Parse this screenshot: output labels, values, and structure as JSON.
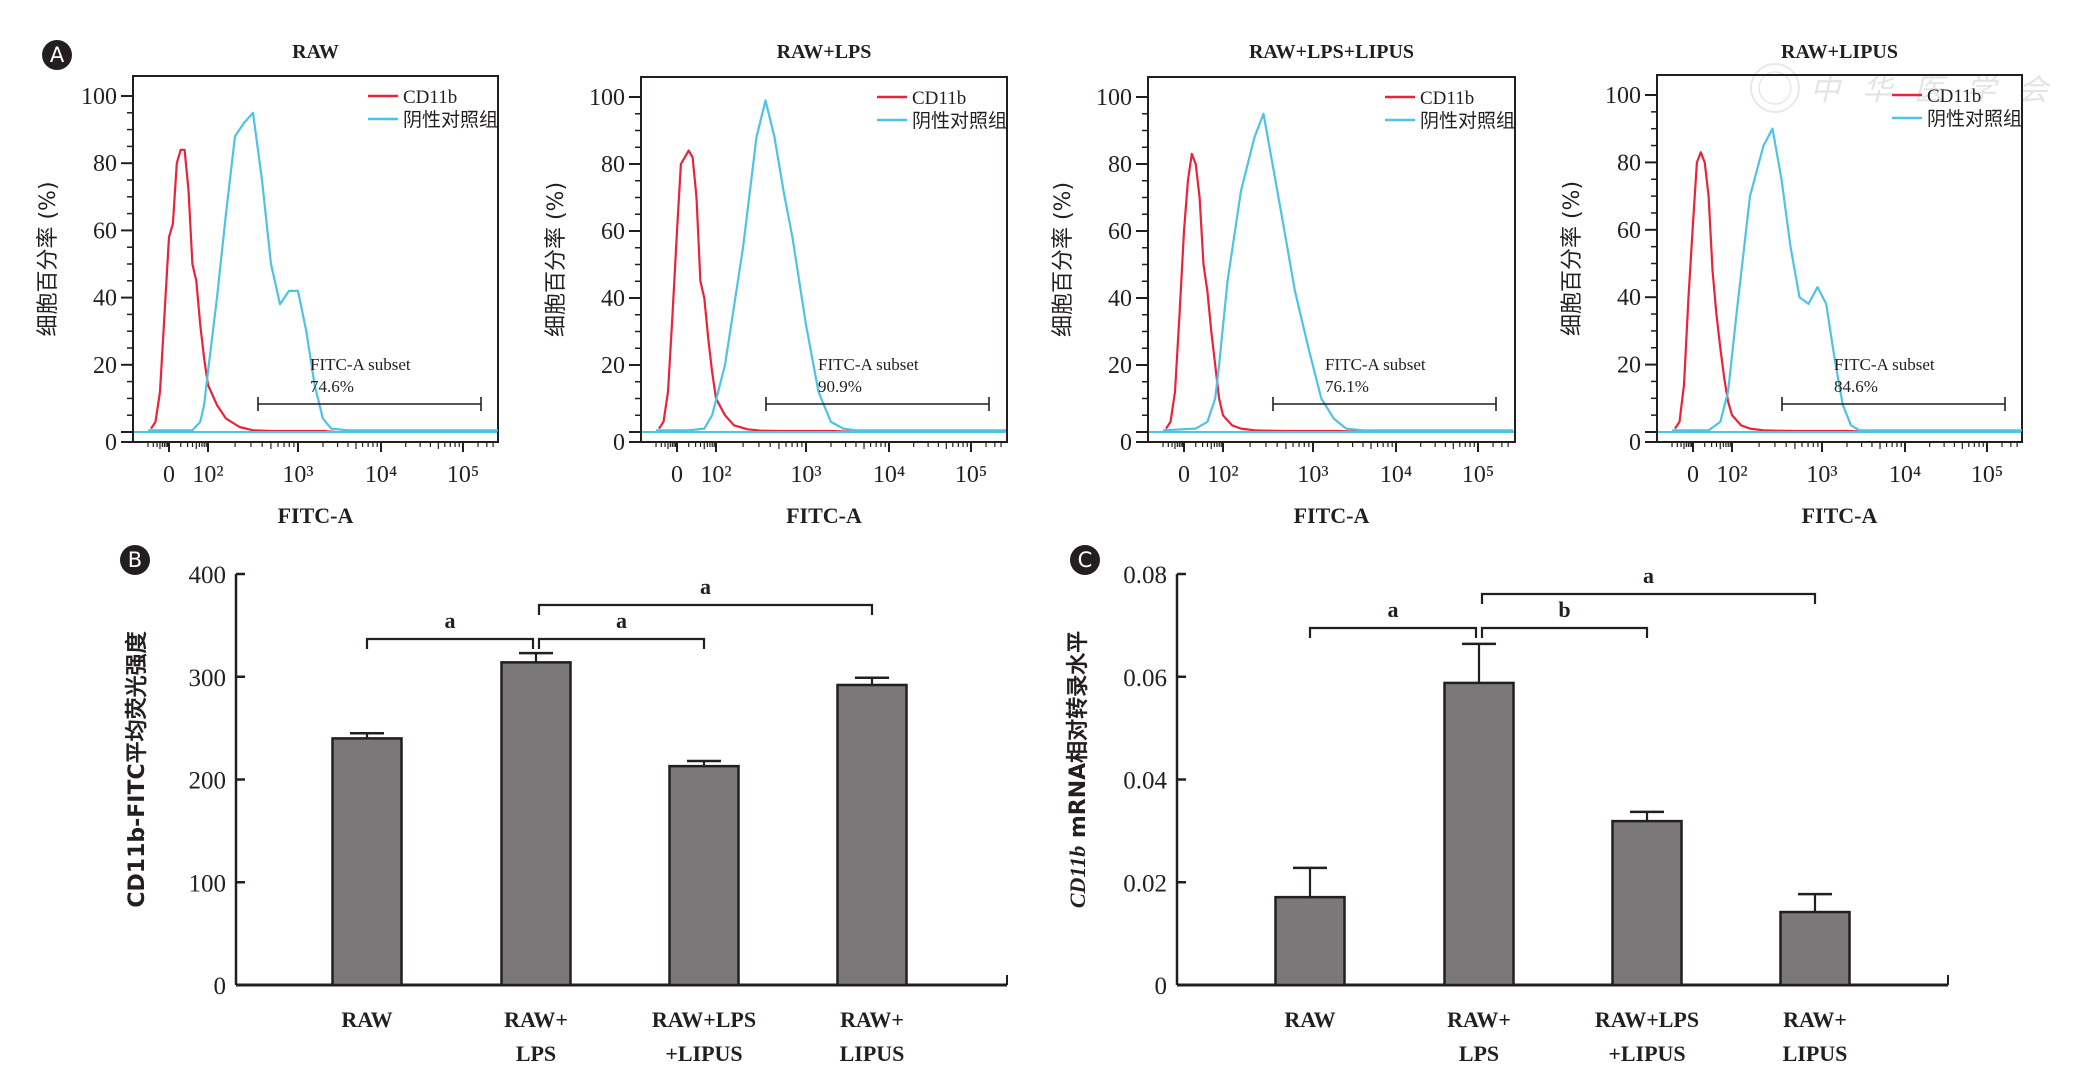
{
  "panel_labels": [
    "A",
    "B",
    "C"
  ],
  "watermark": "中华医学会",
  "colors": {
    "cd11b": "#e8233a",
    "negative_control": "#4ec3e6",
    "bar_fill": "#7a7879",
    "ink": "#231f20"
  },
  "chart_data": [
    {
      "type": "line",
      "panel": "A",
      "title": "RAW",
      "xlabel": "FITC-A",
      "ylabel": "细胞百分率 (%)",
      "ylim": [
        0,
        100
      ],
      "yticks": [
        "0",
        "20",
        "40",
        "60",
        "80",
        "100"
      ],
      "xticks": [
        "0",
        "10²",
        "10³",
        "10⁴",
        "10⁵"
      ],
      "xscale": "biexponential",
      "legend": [
        "CD11b",
        "阴性对照组"
      ],
      "legend_position": "top-right",
      "gate": {
        "label": "FITC-A subset",
        "value": "74.6%"
      },
      "series": [
        {
          "name": "CD11b",
          "x": [
            -0.6,
            -0.45,
            -0.3,
            -0.15,
            0,
            0.1,
            0.2,
            0.3,
            0.4,
            0.5,
            0.6,
            0.7,
            0.8,
            0.9,
            1.0,
            1.1,
            1.2,
            1.35,
            1.5,
            1.7,
            2.0,
            2.3,
            2.45
          ],
          "y": [
            1,
            3,
            12,
            35,
            58,
            62,
            80,
            84,
            84,
            72,
            50,
            45,
            32,
            22,
            14,
            8,
            4,
            1.5,
            0.5,
            0.3,
            0.3,
            0.3,
            0
          ]
        },
        {
          "name": "阴性对照组",
          "x": [
            -0.7,
            0,
            0.6,
            0.8,
            0.9,
            1.0,
            1.1,
            1.2,
            1.3,
            1.4,
            1.5,
            1.6,
            1.7,
            1.8,
            1.9,
            2.0,
            2.1,
            2.2,
            2.3,
            2.4,
            2.6,
            3.0,
            4.0,
            4.7
          ],
          "y": [
            0.5,
            0.5,
            0.5,
            3,
            8,
            18,
            40,
            65,
            88,
            92,
            95,
            75,
            50,
            38,
            42,
            42,
            30,
            14,
            4,
            1,
            0.5,
            0.5,
            0.5,
            0.5
          ]
        }
      ]
    },
    {
      "type": "line",
      "panel": "A",
      "title": "RAW+LPS",
      "xlabel": "FITC-A",
      "ylabel": "细胞百分率 (%)",
      "ylim": [
        0,
        100
      ],
      "yticks": [
        "0",
        "20",
        "40",
        "60",
        "80",
        "100"
      ],
      "xticks": [
        "0",
        "10²",
        "10³",
        "10⁴",
        "10⁵"
      ],
      "xscale": "biexponential",
      "legend": [
        "CD11b",
        "阴性对照组"
      ],
      "legend_position": "top-right",
      "gate": {
        "label": "FITC-A subset",
        "value": "90.9%"
      },
      "series": [
        {
          "name": "CD11b",
          "x": [
            -0.6,
            -0.45,
            -0.3,
            -0.15,
            0,
            0.1,
            0.2,
            0.3,
            0.4,
            0.5,
            0.6,
            0.7,
            0.8,
            0.9,
            1.0,
            1.1,
            1.2,
            1.35,
            1.5,
            1.7,
            2.0,
            2.3,
            2.6
          ],
          "y": [
            1,
            3,
            12,
            35,
            60,
            80,
            82,
            84,
            82,
            70,
            45,
            40,
            28,
            18,
            10,
            5,
            2,
            0.8,
            0.4,
            0.3,
            0.3,
            0.3,
            0
          ]
        },
        {
          "name": "阴性对照组",
          "x": [
            -0.7,
            0.3,
            0.7,
            0.9,
            1.1,
            1.3,
            1.45,
            1.55,
            1.65,
            1.75,
            1.85,
            2.0,
            2.15,
            2.3,
            2.45,
            2.6,
            3.0,
            4.0,
            4.7
          ],
          "y": [
            0.5,
            0.5,
            1,
            5,
            20,
            55,
            88,
            99,
            88,
            72,
            58,
            32,
            12,
            3,
            1,
            0.5,
            0.5,
            0.5,
            0.5
          ]
        }
      ]
    },
    {
      "type": "line",
      "panel": "A",
      "title": "RAW+LPS+LIPUS",
      "xlabel": "FITC-A",
      "ylabel": "细胞百分率 (%)",
      "ylim": [
        0,
        100
      ],
      "yticks": [
        "0",
        "20",
        "40",
        "60",
        "80",
        "100"
      ],
      "xticks": [
        "0",
        "10²",
        "10³",
        "10⁴",
        "10⁵"
      ],
      "xscale": "biexponential",
      "legend": [
        "CD11b",
        "阴性对照组"
      ],
      "legend_position": "top-right",
      "gate": {
        "label": "FITC-A subset",
        "value": "76.1%"
      },
      "series": [
        {
          "name": "CD11b",
          "x": [
            -0.6,
            -0.45,
            -0.3,
            -0.15,
            0,
            0.1,
            0.2,
            0.3,
            0.4,
            0.5,
            0.6,
            0.7,
            0.8,
            0.9,
            1.0,
            1.1,
            1.2,
            1.35,
            1.5,
            1.7,
            2.0,
            2.3,
            2.6
          ],
          "y": [
            1,
            3,
            12,
            35,
            60,
            75,
            83,
            80,
            70,
            50,
            42,
            30,
            20,
            10,
            5,
            2,
            1,
            0.5,
            0.4,
            0.3,
            0.3,
            0.3,
            0
          ]
        },
        {
          "name": "阴性对照组",
          "x": [
            -0.7,
            0.3,
            0.6,
            0.8,
            0.9,
            1.05,
            1.2,
            1.35,
            1.45,
            1.55,
            1.65,
            1.8,
            1.95,
            2.1,
            2.25,
            2.4,
            2.6,
            3.0,
            4.0,
            4.7
          ],
          "y": [
            0.5,
            1,
            3,
            10,
            20,
            45,
            72,
            88,
            95,
            80,
            65,
            42,
            25,
            10,
            4,
            1,
            0.5,
            0.5,
            0.5,
            0.5
          ]
        }
      ]
    },
    {
      "type": "line",
      "panel": "A",
      "title": "RAW+LIPUS",
      "xlabel": "FITC-A",
      "ylabel": "细胞百分率 (%)",
      "ylim": [
        0,
        100
      ],
      "yticks": [
        "0",
        "20",
        "40",
        "60",
        "80",
        "100"
      ],
      "xticks": [
        "0",
        "10²",
        "10³",
        "10⁴",
        "10⁵"
      ],
      "xscale": "biexponential",
      "legend": [
        "CD11b",
        "阴性对照组"
      ],
      "legend_position": "top-right",
      "gate": {
        "label": "FITC-A subset",
        "value": "84.6%"
      },
      "series": [
        {
          "name": "CD11b",
          "x": [
            -0.6,
            -0.45,
            -0.3,
            -0.15,
            0,
            0.1,
            0.2,
            0.3,
            0.4,
            0.5,
            0.6,
            0.7,
            0.8,
            0.9,
            1.0,
            1.1,
            1.2,
            1.35,
            1.5,
            1.7,
            2.0,
            2.3,
            2.6
          ],
          "y": [
            1,
            3,
            14,
            40,
            62,
            80,
            83,
            80,
            70,
            48,
            35,
            25,
            16,
            9,
            5,
            2,
            1,
            0.5,
            0.4,
            0.3,
            0.3,
            0.3,
            0
          ]
        },
        {
          "name": "阴性对照组",
          "x": [
            -0.7,
            0.4,
            0.7,
            0.9,
            1.05,
            1.2,
            1.35,
            1.45,
            1.55,
            1.65,
            1.75,
            1.85,
            1.95,
            2.05,
            2.15,
            2.25,
            2.35,
            2.45,
            2.6,
            3.0,
            4.0,
            4.7
          ],
          "y": [
            0.5,
            0.5,
            3,
            12,
            35,
            70,
            85,
            90,
            75,
            55,
            40,
            38,
            43,
            38,
            22,
            8,
            2,
            0.5,
            0.5,
            0.5,
            0.5,
            0.5
          ]
        }
      ]
    },
    {
      "type": "bar",
      "panel": "B",
      "title": "",
      "xlabel": "",
      "ylabel": "CD11b-FITC平均荧光强度",
      "ylim": [
        0,
        400
      ],
      "yticks": [
        "0",
        "100",
        "200",
        "300",
        "400"
      ],
      "categories": [
        [
          "RAW"
        ],
        [
          "RAW+",
          "LPS"
        ],
        [
          "RAW+LPS",
          "+LIPUS"
        ],
        [
          "RAW+",
          "LIPUS"
        ]
      ],
      "values": [
        240,
        314,
        213,
        292
      ],
      "errors": [
        5,
        9,
        5,
        7
      ],
      "significance": [
        {
          "from": 0,
          "to": 1,
          "label": "a",
          "level": 1
        },
        {
          "from": 1,
          "to": 2,
          "label": "a",
          "level": 1
        },
        {
          "from": 1,
          "to": 3,
          "label": "a",
          "level": 2
        }
      ]
    },
    {
      "type": "bar",
      "panel": "C",
      "title": "",
      "xlabel": "",
      "ylabel_italic": "CD11b",
      "ylabel": " mRNA相对转录水平",
      "ylim": [
        0,
        0.08
      ],
      "yticks": [
        "0",
        "0.02",
        "0.04",
        "0.06",
        "0.08"
      ],
      "categories": [
        [
          "RAW"
        ],
        [
          "RAW+",
          "LPS"
        ],
        [
          "RAW+LPS",
          "+LIPUS"
        ],
        [
          "RAW+",
          "LIPUS"
        ]
      ],
      "values": [
        0.0171,
        0.0588,
        0.0319,
        0.0142
      ],
      "errors": [
        0.0057,
        0.0076,
        0.0018,
        0.0035
      ],
      "significance": [
        {
          "from": 0,
          "to": 1,
          "label": "a",
          "level": 1
        },
        {
          "from": 1,
          "to": 2,
          "label": "b",
          "level": 1
        },
        {
          "from": 1,
          "to": 3,
          "label": "a",
          "level": 2
        }
      ]
    }
  ]
}
